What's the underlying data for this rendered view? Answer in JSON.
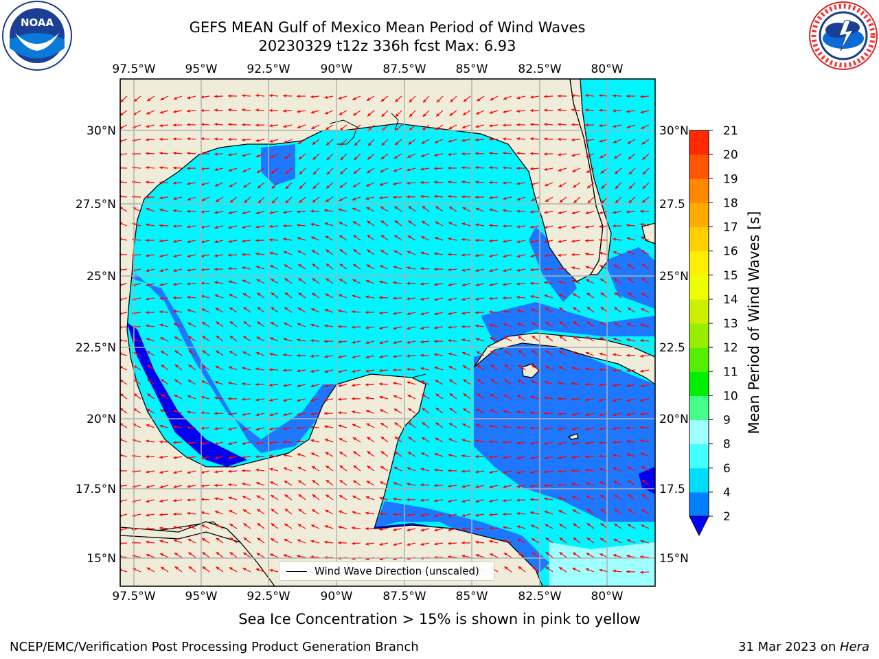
{
  "title_line1": "GEFS MEAN Gulf of Mexico Mean Period of Wind Waves",
  "title_line2": "20230329 t12z 336h fcst   Max: 6.93",
  "caption": "Sea Ice Concentration > 15% is shown in pink to yellow",
  "footer_left": "NCEP/EMC/Verification Post Processing Product Generation Branch",
  "footer_date": "31 Mar 2023 on ",
  "footer_host": "Hera",
  "legend_label": "Wind Wave Direction (unscaled)",
  "colorbar": {
    "label": "Mean Period of Wind Waves [s]",
    "ticks": [
      "2",
      "4",
      "6",
      "8",
      "9",
      "10",
      "11",
      "12",
      "13",
      "14",
      "15",
      "16",
      "17",
      "18",
      "19",
      "20",
      "21"
    ],
    "colors": [
      "#0080ff",
      "#00ddff",
      "#44ffff",
      "#a0ffff",
      "#44ff88",
      "#00ee00",
      "#55ee00",
      "#99ee00",
      "#ccf000",
      "#eeff00",
      "#ffee00",
      "#ffd000",
      "#ffaa00",
      "#ff8800",
      "#ff5500",
      "#ff2a00",
      "#ff0000"
    ],
    "extend_color": "#0000ff"
  },
  "lon_labels": [
    "97.5°W",
    "95°W",
    "92.5°W",
    "90°W",
    "87.5°W",
    "85°W",
    "82.5°W",
    "80°W"
  ],
  "lat_labels_left": [
    "30°N",
    "27.5°N",
    "25°N",
    "22.5°N",
    "20°N",
    "17.5°N",
    "15°N"
  ],
  "lat_labels_right": [
    "30°N",
    "27.5",
    "25°N",
    "22.5",
    "20°N",
    "17.5",
    "15°N"
  ],
  "logos": {
    "left": "noaa-logo",
    "right": "nws-logo"
  },
  "colors": {
    "land": "#efedda",
    "coast": "#000000",
    "grid": "#b0b0b0",
    "arrow": "#ff0000"
  }
}
